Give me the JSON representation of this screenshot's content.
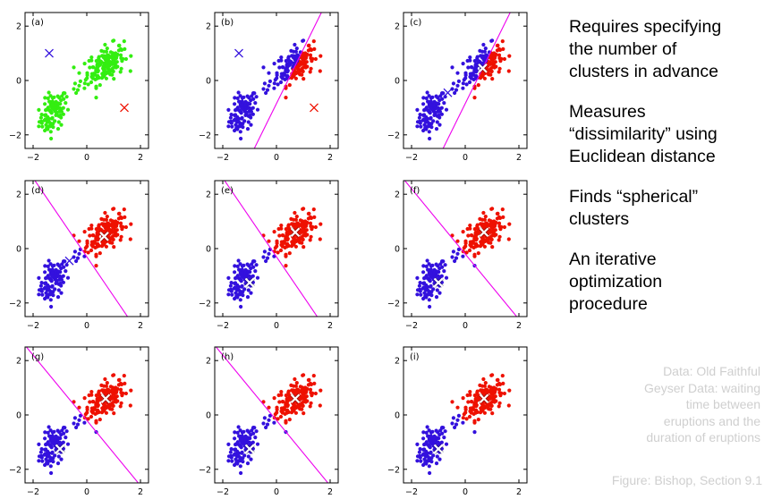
{
  "colors": {
    "green": "#33ee11",
    "blue": "#3311dd",
    "red": "#ee1100",
    "magenta": "#ee00ee",
    "white_marker": "#ffffff",
    "note_gray": "#cfcfcf"
  },
  "axes": {
    "xticks": [
      "−2",
      "0",
      "2"
    ],
    "yticks": [
      "2",
      "0",
      "−2"
    ],
    "xlim": [
      -2.3,
      2.3
    ],
    "ylim": [
      -2.5,
      2.5
    ]
  },
  "panels": [
    {
      "label": "(a)",
      "mode": "green",
      "markers": [
        {
          "x": -1.4,
          "y": 1.0,
          "color": "blue",
          "style": "cross"
        },
        {
          "x": 1.4,
          "y": -1.0,
          "color": "red",
          "style": "cross"
        }
      ],
      "boundary": null
    },
    {
      "label": "(b)",
      "mode": "split",
      "markers": [
        {
          "x": -1.4,
          "y": 1.0,
          "color": "blue",
          "style": "cross"
        },
        {
          "x": 1.4,
          "y": -1.0,
          "color": "red",
          "style": "cross"
        }
      ],
      "boundary": {
        "m": 2.0,
        "c": -0.85
      }
    },
    {
      "label": "(c)",
      "mode": "split",
      "markers": [
        {
          "x": -0.65,
          "y": -0.45,
          "color": "blue",
          "style": "cross"
        },
        {
          "x": 0.65,
          "y": 0.45,
          "color": "white",
          "style": "cross"
        }
      ],
      "boundary": {
        "m": 2.0,
        "c": -0.85
      }
    },
    {
      "label": "(d)",
      "mode": "split",
      "markers": [
        {
          "x": -0.65,
          "y": -0.45,
          "color": "blue",
          "style": "cross"
        },
        {
          "x": 0.65,
          "y": 0.45,
          "color": "white",
          "style": "cross"
        }
      ],
      "boundary": {
        "m": -1.45,
        "c": -0.3
      }
    },
    {
      "label": "(e)",
      "mode": "split",
      "markers": [
        {
          "x": -1.0,
          "y": -1.25,
          "color": "white",
          "style": "cross"
        },
        {
          "x": 0.7,
          "y": 0.6,
          "color": "white",
          "style": "cross"
        }
      ],
      "boundary": {
        "m": -1.45,
        "c": -0.3
      }
    },
    {
      "label": "(f)",
      "mode": "split",
      "markers": [
        {
          "x": -1.0,
          "y": -1.25,
          "color": "white",
          "style": "cross"
        },
        {
          "x": 0.7,
          "y": 0.6,
          "color": "white",
          "style": "cross"
        }
      ],
      "boundary": {
        "m": -1.2,
        "c": -0.2
      }
    },
    {
      "label": "(g)",
      "mode": "split",
      "markers": [
        {
          "x": -1.0,
          "y": -1.25,
          "color": "white",
          "style": "cross"
        },
        {
          "x": 0.7,
          "y": 0.6,
          "color": "white",
          "style": "cross"
        }
      ],
      "boundary": {
        "m": -1.2,
        "c": -0.2
      }
    },
    {
      "label": "(h)",
      "mode": "split",
      "markers": [
        {
          "x": -1.0,
          "y": -1.25,
          "color": "white",
          "style": "cross"
        },
        {
          "x": 0.7,
          "y": 0.6,
          "color": "white",
          "style": "cross"
        }
      ],
      "boundary": {
        "m": -1.2,
        "c": -0.2
      }
    },
    {
      "label": "(i)",
      "mode": "split",
      "markers": [
        {
          "x": -1.0,
          "y": -1.25,
          "color": "white",
          "style": "cross"
        },
        {
          "x": 0.7,
          "y": 0.6,
          "color": "white",
          "style": "cross"
        }
      ],
      "boundary": null
    }
  ],
  "bullets": [
    "Requires specifying\nthe number of\nclusters in advance",
    "Measures\n“dissimilarity” using\nEuclidean distance",
    "Finds “spherical”\nclusters",
    "An iterative\noptimization\nprocedure"
  ],
  "note": "Data: Old Faithful\nGeyser Data: waiting\ntime between\neruptions and the\nduration of eruptions",
  "credit": "Figure: Bishop, Section 9.1"
}
